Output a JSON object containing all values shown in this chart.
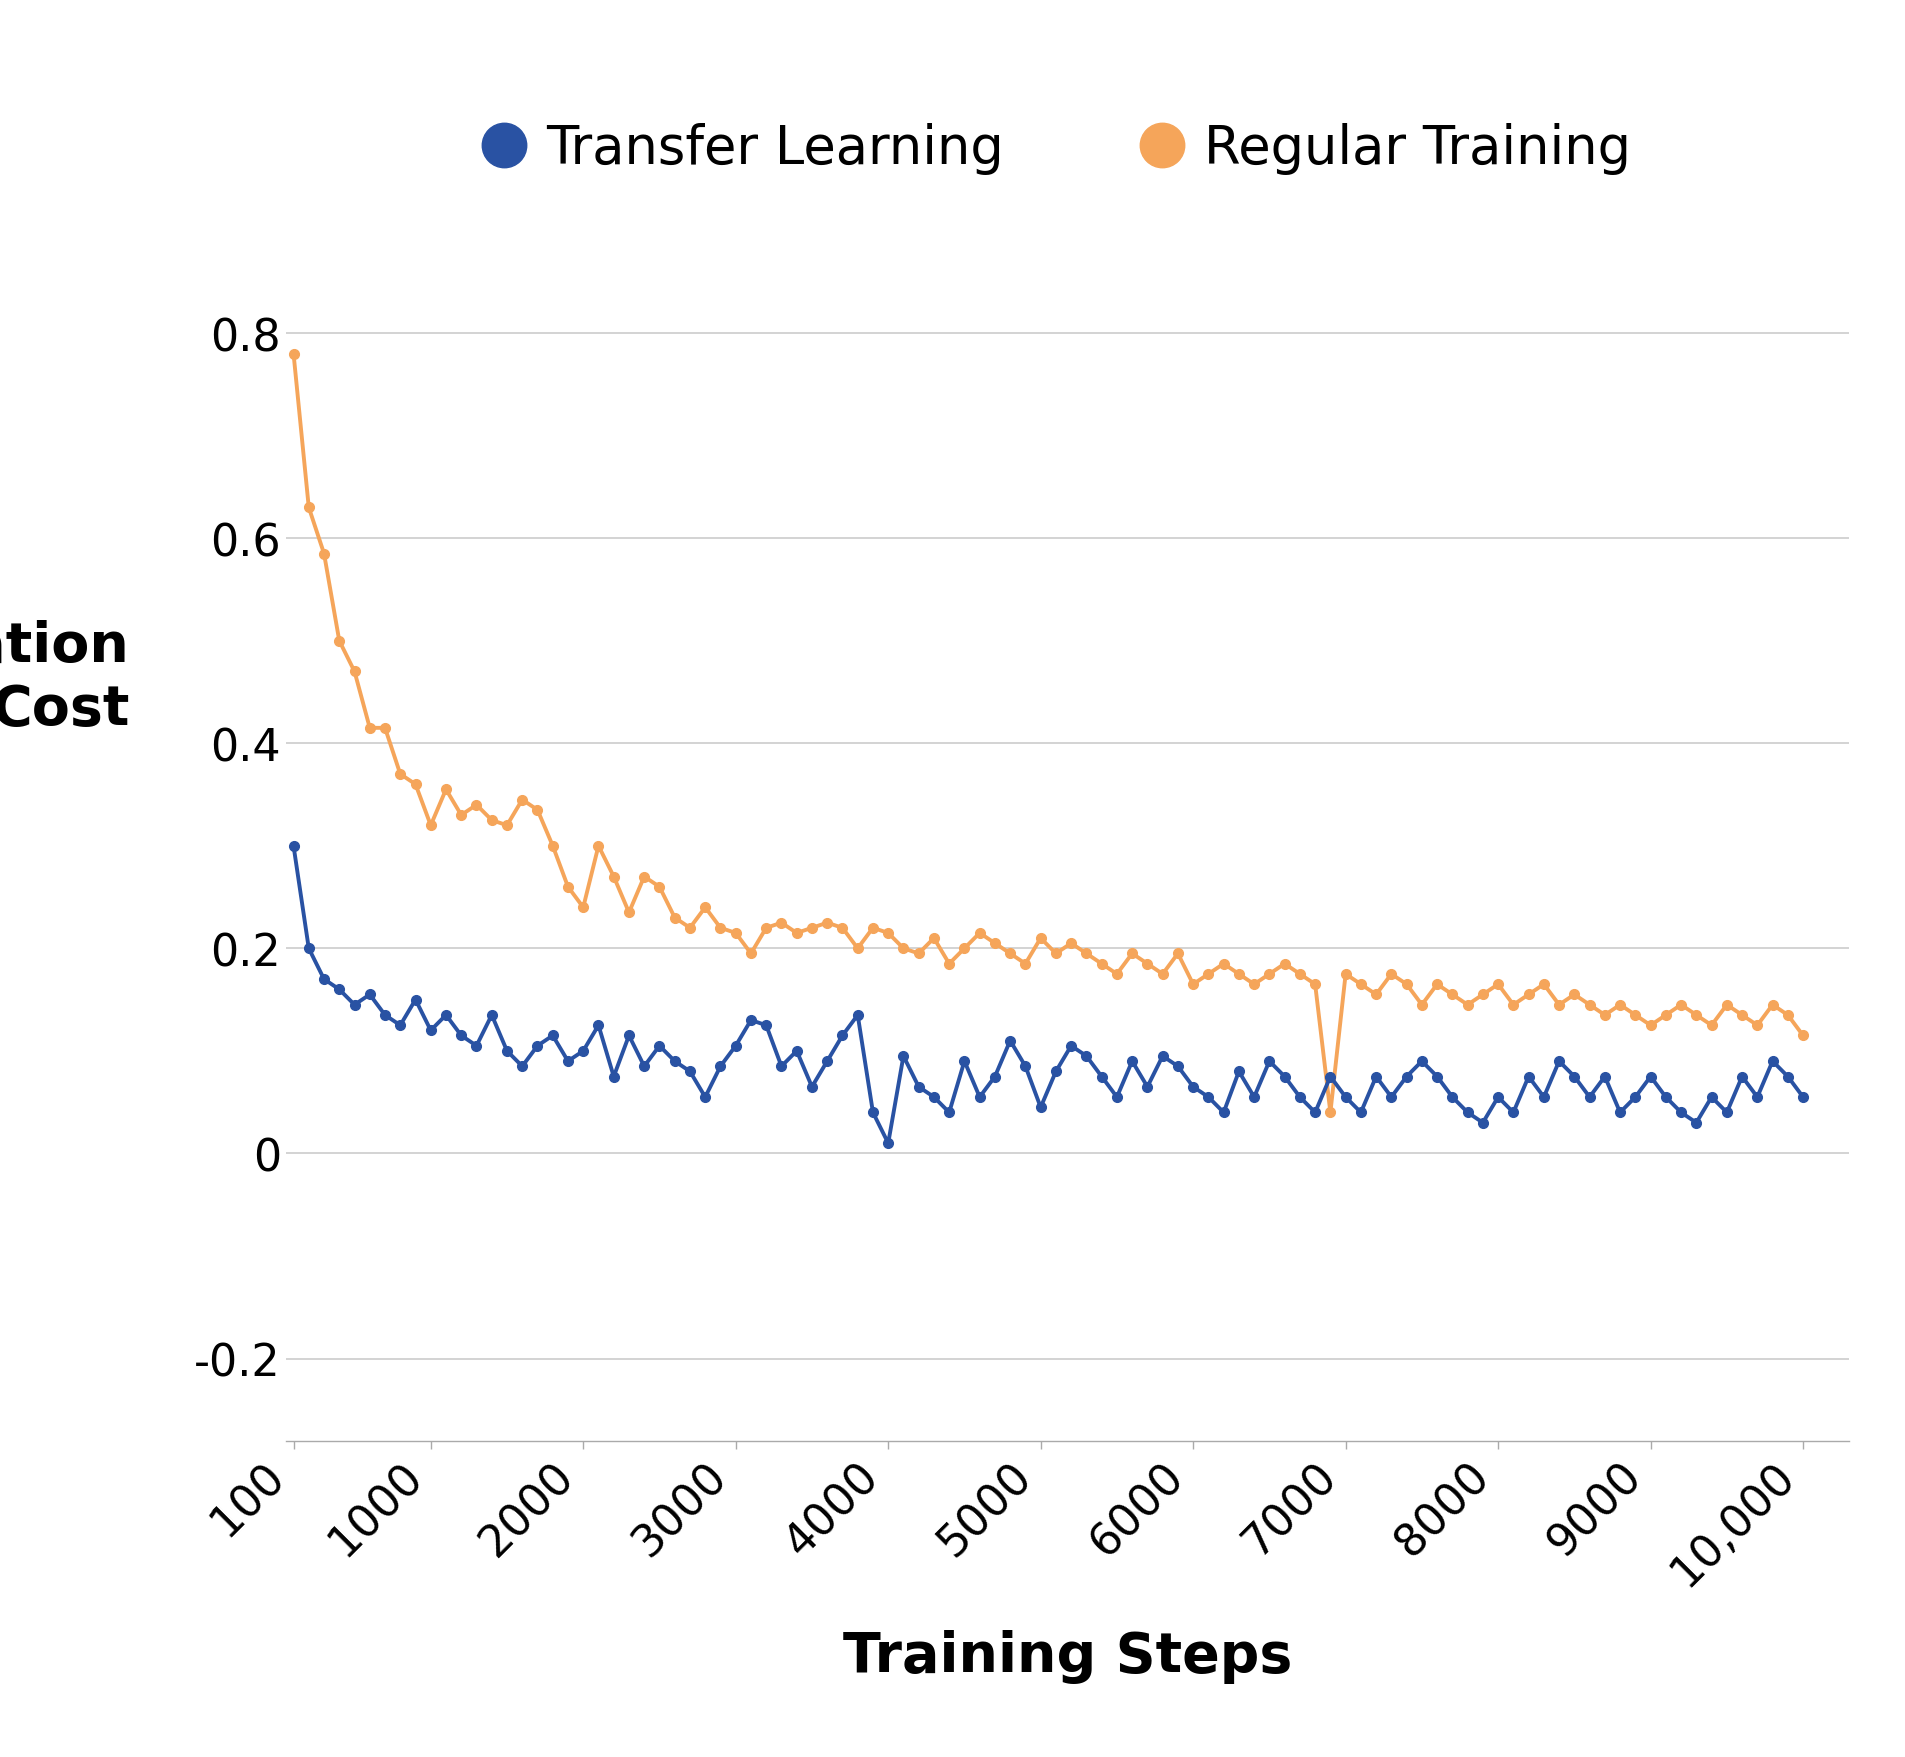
{
  "transfer_learning_x": [
    100,
    200,
    300,
    400,
    500,
    600,
    700,
    800,
    900,
    1000,
    1100,
    1200,
    1300,
    1400,
    1500,
    1600,
    1700,
    1800,
    1900,
    2000,
    2100,
    2200,
    2300,
    2400,
    2500,
    2600,
    2700,
    2800,
    2900,
    3000,
    3100,
    3200,
    3300,
    3400,
    3500,
    3600,
    3700,
    3800,
    3900,
    4000,
    4100,
    4200,
    4300,
    4400,
    4500,
    4600,
    4700,
    4800,
    4900,
    5000,
    5100,
    5200,
    5300,
    5400,
    5500,
    5600,
    5700,
    5800,
    5900,
    6000,
    6100,
    6200,
    6300,
    6400,
    6500,
    6600,
    6700,
    6800,
    6900,
    7000,
    7100,
    7200,
    7300,
    7400,
    7500,
    7600,
    7700,
    7800,
    7900,
    8000,
    8100,
    8200,
    8300,
    8400,
    8500,
    8600,
    8700,
    8800,
    8900,
    9000,
    9100,
    9200,
    9300,
    9400,
    9500,
    9600,
    9700,
    9800,
    9900,
    10000
  ],
  "transfer_learning_y": [
    0.3,
    0.2,
    0.17,
    0.16,
    0.145,
    0.155,
    0.135,
    0.125,
    0.15,
    0.12,
    0.135,
    0.115,
    0.105,
    0.135,
    0.1,
    0.085,
    0.105,
    0.115,
    0.09,
    0.1,
    0.125,
    0.075,
    0.115,
    0.085,
    0.105,
    0.09,
    0.08,
    0.055,
    0.085,
    0.105,
    0.13,
    0.125,
    0.085,
    0.1,
    0.065,
    0.09,
    0.115,
    0.135,
    0.04,
    0.01,
    0.095,
    0.065,
    0.055,
    0.04,
    0.09,
    0.055,
    0.075,
    0.11,
    0.085,
    0.045,
    0.08,
    0.105,
    0.095,
    0.075,
    0.055,
    0.09,
    0.065,
    0.095,
    0.085,
    0.065,
    0.055,
    0.04,
    0.08,
    0.055,
    0.09,
    0.075,
    0.055,
    0.04,
    0.075,
    0.055,
    0.04,
    0.075,
    0.055,
    0.075,
    0.09,
    0.075,
    0.055,
    0.04,
    0.03,
    0.055,
    0.04,
    0.075,
    0.055,
    0.09,
    0.075,
    0.055,
    0.075,
    0.04,
    0.055,
    0.075,
    0.055,
    0.04,
    0.03,
    0.055,
    0.04,
    0.075,
    0.055,
    0.09,
    0.075,
    0.055
  ],
  "regular_training_x": [
    100,
    200,
    300,
    400,
    500,
    600,
    700,
    800,
    900,
    1000,
    1100,
    1200,
    1300,
    1400,
    1500,
    1600,
    1700,
    1800,
    1900,
    2000,
    2100,
    2200,
    2300,
    2400,
    2500,
    2600,
    2700,
    2800,
    2900,
    3000,
    3100,
    3200,
    3300,
    3400,
    3500,
    3600,
    3700,
    3800,
    3900,
    4000,
    4100,
    4200,
    4300,
    4400,
    4500,
    4600,
    4700,
    4800,
    4900,
    5000,
    5100,
    5200,
    5300,
    5400,
    5500,
    5600,
    5700,
    5800,
    5900,
    6000,
    6100,
    6200,
    6300,
    6400,
    6500,
    6600,
    6700,
    6800,
    6900,
    7000,
    7100,
    7200,
    7300,
    7400,
    7500,
    7600,
    7700,
    7800,
    7900,
    8000,
    8100,
    8200,
    8300,
    8400,
    8500,
    8600,
    8700,
    8800,
    8900,
    9000,
    9100,
    9200,
    9300,
    9400,
    9500,
    9600,
    9700,
    9800,
    9900,
    10000
  ],
  "regular_training_y": [
    0.78,
    0.63,
    0.585,
    0.5,
    0.47,
    0.415,
    0.415,
    0.37,
    0.36,
    0.32,
    0.355,
    0.33,
    0.34,
    0.325,
    0.32,
    0.345,
    0.335,
    0.3,
    0.26,
    0.24,
    0.3,
    0.27,
    0.235,
    0.27,
    0.26,
    0.23,
    0.22,
    0.24,
    0.22,
    0.215,
    0.195,
    0.22,
    0.225,
    0.215,
    0.22,
    0.225,
    0.22,
    0.2,
    0.22,
    0.215,
    0.2,
    0.195,
    0.21,
    0.185,
    0.2,
    0.215,
    0.205,
    0.195,
    0.185,
    0.21,
    0.195,
    0.205,
    0.195,
    0.185,
    0.175,
    0.195,
    0.185,
    0.175,
    0.195,
    0.165,
    0.175,
    0.185,
    0.175,
    0.165,
    0.175,
    0.185,
    0.175,
    0.165,
    0.04,
    0.175,
    0.165,
    0.155,
    0.175,
    0.165,
    0.145,
    0.165,
    0.155,
    0.145,
    0.155,
    0.165,
    0.145,
    0.155,
    0.165,
    0.145,
    0.155,
    0.145,
    0.135,
    0.145,
    0.135,
    0.125,
    0.135,
    0.145,
    0.135,
    0.125,
    0.145,
    0.135,
    0.125,
    0.145,
    0.135,
    0.115
  ],
  "transfer_color": "#2952a3",
  "regular_color": "#f5a55a",
  "xlabel": "Training Steps",
  "legend_transfer": "Transfer Learning",
  "legend_regular": "Regular Training",
  "ylim": [
    -0.28,
    0.92
  ],
  "yticks": [
    -0.2,
    0.0,
    0.2,
    0.4,
    0.6,
    0.8
  ],
  "ytick_labels": [
    "-0.2",
    "0",
    "0.2",
    "0.4",
    "0.6",
    "0.8"
  ],
  "xticks": [
    100,
    1000,
    2000,
    3000,
    4000,
    5000,
    6000,
    7000,
    8000,
    9000,
    10000
  ],
  "xticklabels": [
    "100",
    "1000",
    "2000",
    "3000",
    "4000",
    "5000",
    "6000",
    "7000",
    "8000",
    "9000",
    "10,000"
  ],
  "axis_label_fontsize": 40,
  "tick_fontsize": 32,
  "legend_fontsize": 38,
  "line_width": 2.8,
  "marker_size": 7,
  "grid_color": "#cccccc",
  "background_color": "#ffffff"
}
